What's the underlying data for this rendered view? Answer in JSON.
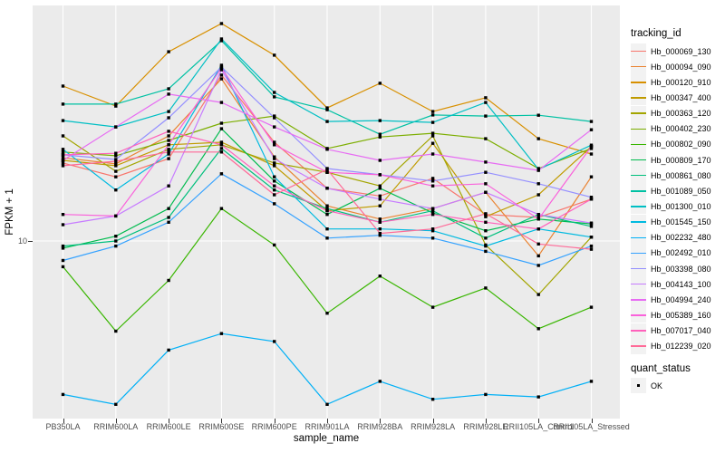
{
  "chart_data": {
    "type": "line",
    "title": "",
    "xlabel": "sample_name",
    "ylabel": "FPKM + 1",
    "y_scale": "log10",
    "y_tick_labels": [
      "10"
    ],
    "y_tick_value": 10,
    "grid": "on",
    "legend_position": "right",
    "categories": [
      "PB350LA",
      "RRIM600LA",
      "RRIM600LE",
      "RRIM600SE",
      "RRIM600PE",
      "RRIM901LA",
      "RRIM928BA",
      "RRIM928LA",
      "RRIM928LE",
      "RRII105LA_Control",
      "RRII105LA_Stressed"
    ],
    "series": [
      {
        "name": "Hb_000069_130",
        "color": "#F8766D",
        "values": [
          22.1,
          19.2,
          23.1,
          54.0,
          27.3,
          17.1,
          15.8,
          18.9,
          13.1,
          12.7,
          15.3
        ]
      },
      {
        "name": "Hb_000094_090",
        "color": "#EA8331",
        "values": [
          23.3,
          21.9,
          29.1,
          52.0,
          23.5,
          14.3,
          12.5,
          13.9,
          16.4,
          8.6,
          19.2
        ]
      },
      {
        "name": "Hb_000120_910",
        "color": "#D89000",
        "values": [
          48.3,
          39.4,
          68.5,
          91.2,
          66.1,
          38.7,
          49.7,
          37.3,
          42.9,
          28.3,
          24.2
        ]
      },
      {
        "name": "Hb_000347_400",
        "color": "#C09B00",
        "values": [
          22.7,
          21.5,
          26.6,
          27.3,
          21.5,
          13.6,
          14.3,
          27.0,
          12.8,
          16.0,
          26.1
        ]
      },
      {
        "name": "Hb_000363_120",
        "color": "#A3A500",
        "values": [
          29.1,
          20.3,
          25.4,
          26.6,
          22.1,
          20.1,
          17.5,
          29.1,
          9.6,
          5.8,
          10.4
        ]
      },
      {
        "name": "Hb_000402_230",
        "color": "#7CAE00",
        "values": [
          24.7,
          23.8,
          27.8,
          33.1,
          35.6,
          25.6,
          28.8,
          29.9,
          28.3,
          20.9,
          25.6
        ]
      },
      {
        "name": "Hb_000802_090",
        "color": "#39B600",
        "values": [
          7.7,
          4.0,
          6.7,
          13.9,
          9.6,
          4.8,
          7.0,
          5.1,
          6.2,
          4.1,
          5.1
        ]
      },
      {
        "name": "Hb_000809_170",
        "color": "#00BB4E",
        "values": [
          9.3,
          10.5,
          13.9,
          31.3,
          18.4,
          13.1,
          17.1,
          13.3,
          11.1,
          12.5,
          11.9
        ]
      },
      {
        "name": "Hb_000861_080",
        "color": "#00BF7D",
        "values": [
          9.5,
          10.0,
          12.7,
          25.6,
          16.8,
          13.9,
          12.1,
          13.6,
          10.3,
          13.1,
          11.6
        ]
      },
      {
        "name": "Hb_001089_050",
        "color": "#00C1A3",
        "values": [
          40.2,
          40.2,
          47.0,
          76.6,
          43.3,
          38.0,
          29.6,
          36.0,
          35.6,
          35.9,
          33.7
        ]
      },
      {
        "name": "Hb_001300_010",
        "color": "#00BFC4",
        "values": [
          34.0,
          31.9,
          37.3,
          78.0,
          45.3,
          33.7,
          34.0,
          33.4,
          40.9,
          20.7,
          26.5
        ]
      },
      {
        "name": "Hb_001545_150",
        "color": "#00BAE0",
        "values": [
          25.4,
          16.8,
          24.2,
          59.7,
          19.2,
          11.3,
          11.3,
          11.1,
          9.5,
          11.3,
          10.4
        ]
      },
      {
        "name": "Hb_002232_480",
        "color": "#00B0F6",
        "values": [
          2.1,
          1.9,
          3.3,
          3.9,
          3.6,
          1.9,
          2.4,
          2.0,
          2.1,
          2.05,
          2.4
        ]
      },
      {
        "name": "Hb_002492_010",
        "color": "#35A2FF",
        "values": [
          8.2,
          9.5,
          12.1,
          19.8,
          14.6,
          10.3,
          10.6,
          10.3,
          9.0,
          7.8,
          9.5
        ]
      },
      {
        "name": "Hb_003398_080",
        "color": "#9590FF",
        "values": [
          24.0,
          22.9,
          35.0,
          58.6,
          35.0,
          20.9,
          19.6,
          18.4,
          20.1,
          17.9,
          15.6
        ]
      },
      {
        "name": "Hb_004143_100",
        "color": "#C77CFF",
        "values": [
          11.8,
          12.9,
          17.5,
          57.0,
          23.1,
          17.1,
          15.3,
          13.9,
          16.4,
          13.1,
          12.0
        ]
      },
      {
        "name": "Hb_004994_240",
        "color": "#E76BF3",
        "values": [
          22.7,
          31.9,
          44.5,
          40.9,
          31.9,
          25.4,
          22.7,
          24.2,
          22.3,
          20.5,
          31.0
        ]
      },
      {
        "name": "Hb_005389_160",
        "color": "#FA62DB",
        "values": [
          13.1,
          12.9,
          26.6,
          58.1,
          26.6,
          20.1,
          19.6,
          17.5,
          17.9,
          12.5,
          26.1
        ]
      },
      {
        "name": "Hb_007017_040",
        "color": "#FF62BC",
        "values": [
          24.0,
          24.4,
          30.5,
          26.6,
          17.5,
          13.6,
          12.1,
          13.1,
          12.1,
          11.3,
          15.3
        ]
      },
      {
        "name": "Hb_012239_020",
        "color": "#FF6A98",
        "values": [
          21.5,
          22.5,
          24.7,
          24.7,
          16.0,
          20.7,
          10.8,
          11.3,
          13.2,
          9.7,
          9.2
        ]
      }
    ],
    "legend": {
      "tracking_title": "tracking_id",
      "quant_title": "quant_status",
      "quant_value": "OK"
    },
    "colors": {
      "panel_bg": "#EBEBEB",
      "grid": "#FFFFFF",
      "marker": "#000000",
      "tick": "#333333",
      "tick_label": "#4D4D4D"
    }
  }
}
